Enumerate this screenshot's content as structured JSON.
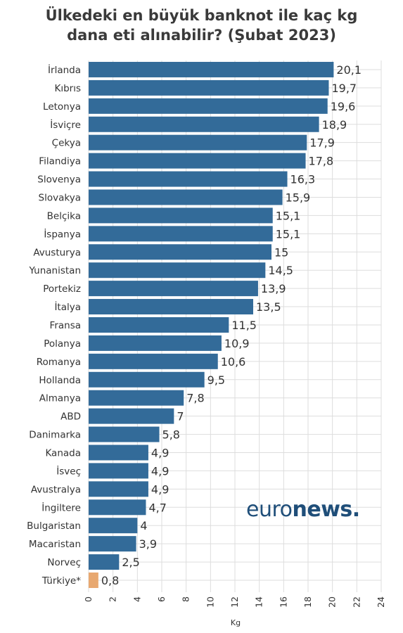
{
  "title_line1": "Ülkedeki en büyük banknot ile kaç kg",
  "title_line2": "dana eti alınabilir? (Şubat 2023)",
  "logo": {
    "part1": "euro",
    "part2": "news."
  },
  "colors": {
    "bar": "#336b99",
    "highlight": "#e8a870",
    "grid": "#dddddd",
    "text": "#333333"
  },
  "chart_data": {
    "type": "bar",
    "orientation": "horizontal",
    "title": "Ülkedeki en büyük banknot ile kaç kg dana eti alınabilir? (Şubat 2023)",
    "xlabel": "Kg",
    "ylabel": "",
    "xlim": [
      0,
      24
    ],
    "xticks": [
      "0",
      "2",
      "4",
      "6",
      "8",
      "10",
      "12",
      "14",
      "16",
      "18",
      "20",
      "22",
      "24"
    ],
    "grid": true,
    "categories": [
      "İrlanda",
      "Kıbrıs",
      "Letonya",
      "İsviçre",
      "Çekya",
      "Filandiya",
      "Slovenya",
      "Slovakya",
      "Belçika",
      "İspanya",
      "Avusturya",
      "Yunanistan",
      "Portekiz",
      "İtalya",
      "Fransa",
      "Polanya",
      "Romanya",
      "Hollanda",
      "Almanya",
      "ABD",
      "Danimarka",
      "Kanada",
      "İsveç",
      "Avustralya",
      "İngiltere",
      "Bulgaristan",
      "Macaristan",
      "Norveç",
      "Türkiye*"
    ],
    "values": [
      20.1,
      19.7,
      19.6,
      18.9,
      17.9,
      17.8,
      16.3,
      15.9,
      15.1,
      15.1,
      15,
      14.5,
      13.9,
      13.5,
      11.5,
      10.9,
      10.6,
      9.5,
      7.8,
      7,
      5.8,
      4.9,
      4.9,
      4.9,
      4.7,
      4,
      3.9,
      2.5,
      0.8
    ],
    "value_labels": [
      "20,1",
      "19,7",
      "19,6",
      "18,9",
      "17,9",
      "17,8",
      "16,3",
      "15,9",
      "15,1",
      "15,1",
      "15",
      "14,5",
      "13,9",
      "13,5",
      "11,5",
      "10,9",
      "10,6",
      "9,5",
      "7,8",
      "7",
      "5,8",
      "4,9",
      "4,9",
      "4,9",
      "4,7",
      "4",
      "3,9",
      "2,5",
      "0,8"
    ],
    "highlight": "Türkiye*"
  }
}
